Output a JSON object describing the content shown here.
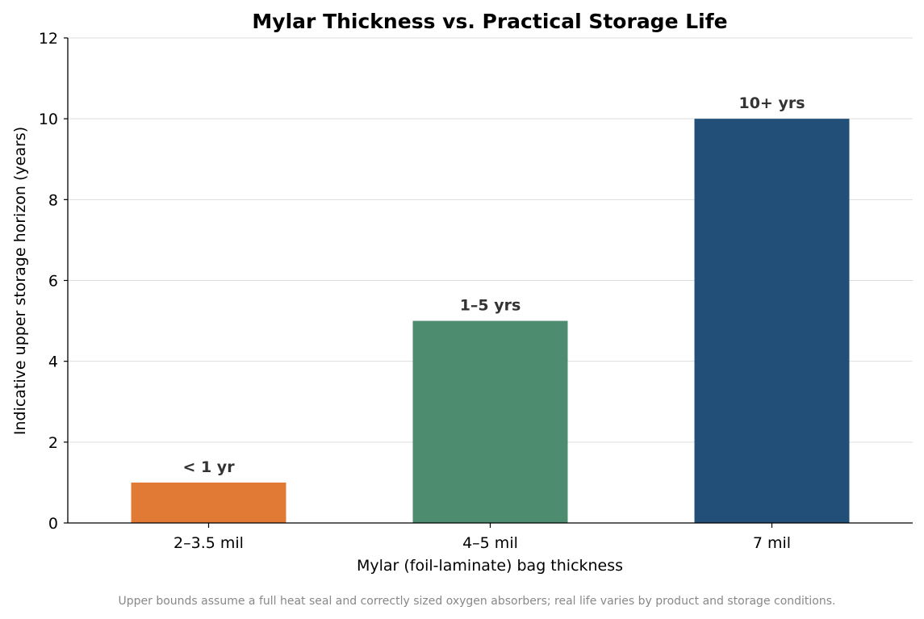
{
  "chart_data": {
    "type": "bar",
    "title": "Mylar Thickness vs. Practical Storage Life",
    "xlabel": "Mylar (foil-laminate) bag thickness",
    "ylabel": "Indicative upper storage horizon (years)",
    "categories": [
      "2–3.5 mil",
      "4–5 mil",
      "7 mil"
    ],
    "values": [
      1,
      5,
      10
    ],
    "bar_labels": [
      "< 1 yr",
      "1–5 yrs",
      "10+ yrs"
    ],
    "colors": [
      "#e07a34",
      "#4d8c6f",
      "#214f78"
    ],
    "ylim": [
      0,
      12
    ],
    "yticks": [
      0,
      2,
      4,
      6,
      8,
      10,
      12
    ],
    "grid": "horizontal",
    "legend": "none"
  },
  "footnote": "Upper bounds assume a full heat seal and correctly sized oxygen absorbers; real life varies by product and storage conditions."
}
